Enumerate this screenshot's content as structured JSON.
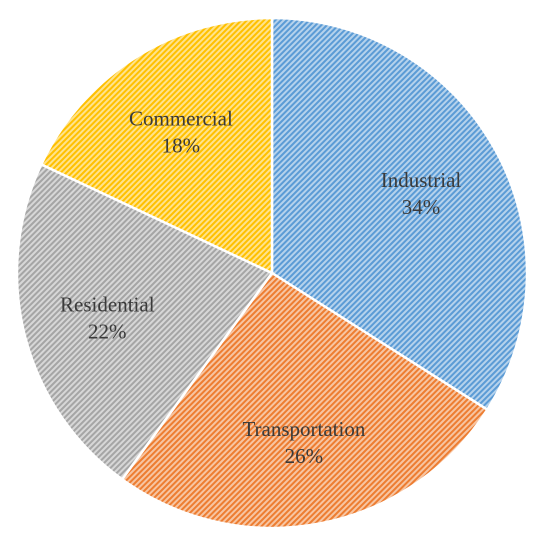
{
  "chart_data": {
    "type": "pie",
    "title": "",
    "start_angle_deg": 0,
    "direction": "clockwise",
    "slices": [
      {
        "label": "Industrial",
        "value": 34,
        "value_label": "34%",
        "color": "#5b9bd5"
      },
      {
        "label": "Transportation",
        "value": 26,
        "value_label": "26%",
        "color": "#ed7d31"
      },
      {
        "label": "Residential",
        "value": 22,
        "value_label": "22%",
        "color": "#a5a5a5"
      },
      {
        "label": "Commercial",
        "value": 18,
        "value_label": "18%",
        "color": "#ffc000"
      }
    ],
    "fill_pattern": "diagonal-hatch",
    "labels_inside": true,
    "legend": "none"
  }
}
